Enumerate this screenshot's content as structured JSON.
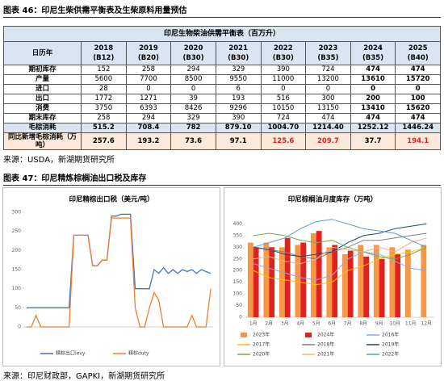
{
  "fig46": {
    "caption": "图表 46：印尼生柴供需平衡表及生柴原料用量预估",
    "source": "来源：USDA，新湖期货研究所"
  },
  "table": {
    "title": "印尼生物柴油供需平衡表（百万升）",
    "header_label": "日历年",
    "years": [
      "2018",
      "2019",
      "2020",
      "2021",
      "2022",
      "2023",
      "2024",
      "2025"
    ],
    "blends": [
      "(B12)",
      "(B20)",
      "(B30)",
      "(B30)",
      "(B30)",
      "(B35)",
      "(B35)",
      "(B40)"
    ],
    "rows": [
      {
        "label": "期初库存",
        "cells": [
          "152",
          "258",
          "294",
          "329",
          "390",
          "724",
          "474",
          "474"
        ]
      },
      {
        "label": "产量",
        "cells": [
          "5600",
          "7700",
          "8500",
          "9550",
          "11000",
          "13200",
          "13610",
          "15720"
        ]
      },
      {
        "label": "进口",
        "cells": [
          "28",
          "0",
          "0",
          "6",
          "0",
          "0",
          "0",
          "0"
        ]
      },
      {
        "label": "出口",
        "cells": [
          "1772",
          "1271",
          "39",
          "193",
          "516",
          "300",
          "200",
          "100"
        ]
      },
      {
        "label": "消费",
        "cells": [
          "3750",
          "6393",
          "8426",
          "9296",
          "10150",
          "13150",
          "13410",
          "15620"
        ]
      },
      {
        "label": "期末库存",
        "cells": [
          "258",
          "294",
          "329",
          "390",
          "724",
          "474",
          "474",
          "474"
        ]
      },
      {
        "label": "毛棕消耗",
        "cells": [
          "515.2",
          "708.4",
          "782",
          "879.10",
          "1004.70",
          "1214.40",
          "1252.12",
          "1446.24"
        ]
      },
      {
        "label": "同比新增毛棕消耗（万吨）",
        "cells": [
          "257.6",
          "193.2",
          "73.6",
          "97.1",
          "125.6",
          "209.7",
          "37.7",
          "194.1"
        ]
      }
    ]
  },
  "fig47": {
    "caption": "图表 47：印尼精炼棕榈油出口税及库存",
    "source": "来源：印尼财政部，GAPKI，新湖期货研究所"
  },
  "chart_data": [
    {
      "type": "line",
      "title": "印尼精棕出口税（美元/吨）",
      "categories": [
        null,
        null,
        null,
        null,
        null,
        null,
        null,
        null,
        null,
        null,
        null,
        null,
        null,
        null,
        null,
        null,
        null,
        null,
        null,
        null,
        null,
        null,
        null,
        null,
        null,
        null,
        null,
        null,
        null,
        null,
        null,
        null,
        null,
        null,
        null,
        null,
        null,
        null,
        null,
        null
      ],
      "series": [
        {
          "name": "精棕出口levy",
          "color": "#4472c4",
          "values": [
            50,
            50,
            50,
            50,
            50,
            50,
            50,
            50,
            50,
            50,
            240,
            240,
            240,
            240,
            160,
            160,
            175,
            175,
            290,
            290,
            295,
            295,
            295,
            100,
            100,
            100,
            100,
            150,
            140,
            155,
            140,
            150,
            140,
            150,
            145,
            150,
            140,
            150,
            145,
            140
          ]
        },
        {
          "name": "精棕duty",
          "color": "#ed7d31",
          "values": [
            0,
            0,
            30,
            0,
            0,
            0,
            0,
            0,
            0,
            0,
            240,
            240,
            240,
            240,
            160,
            160,
            175,
            175,
            285,
            285,
            285,
            285,
            285,
            50,
            0,
            0,
            50,
            90,
            70,
            0,
            0,
            0,
            0,
            0,
            0,
            30,
            0,
            0,
            0,
            100
          ]
        }
      ],
      "ylim": [
        0,
        300
      ],
      "yticks": [
        0,
        50,
        100,
        150,
        200,
        250,
        300
      ],
      "grid": false
    },
    {
      "type": "bar",
      "title": "印尼棕榈油月度库存（万吨）",
      "categories": [
        "1月",
        "2月",
        "3月",
        "4月",
        "5月",
        "6月",
        "7月",
        "8月",
        "9月",
        "10月",
        "11月",
        "12月"
      ],
      "series": [
        {
          "name": "2023年",
          "type": "bar",
          "color": "#f79646",
          "values": [
            320,
            320,
            300,
            310,
            360,
            300,
            270,
            310,
            310,
            300,
            290,
            310
          ]
        },
        {
          "name": "2024年",
          "type": "bar",
          "color": "#e0211f",
          "values": [
            300,
            300,
            340,
            320,
            370,
            310,
            285,
            260,
            250,
            270,
            null,
            null
          ]
        },
        {
          "name": "2016年",
          "type": "line",
          "color": "#8faadc",
          "values": [
            230,
            210,
            190,
            170,
            160,
            180,
            250,
            280,
            270,
            240,
            210,
            200
          ]
        },
        {
          "name": "2017年",
          "type": "line",
          "color": "#ffc000",
          "values": [
            200,
            170,
            160,
            150,
            140,
            150,
            200,
            220,
            250,
            270,
            280,
            300
          ]
        },
        {
          "name": "2018年",
          "type": "line",
          "color": "#7f7f7f",
          "values": [
            300,
            290,
            280,
            260,
            250,
            280,
            300,
            330,
            330,
            340,
            350,
            360
          ]
        },
        {
          "name": "2019年",
          "type": "line",
          "color": "#264478",
          "values": [
            300,
            290,
            270,
            260,
            270,
            280,
            320,
            350,
            360,
            380,
            390,
            400
          ]
        },
        {
          "name": "2020年",
          "type": "line",
          "color": "#70ad47",
          "values": [
            350,
            360,
            350,
            330,
            320,
            330,
            300,
            280,
            260,
            250,
            270,
            300
          ]
        },
        {
          "name": "2021年",
          "type": "line",
          "color": "#f4b183",
          "values": [
            250,
            260,
            240,
            230,
            250,
            300,
            290,
            280,
            300,
            280,
            320,
            340
          ]
        },
        {
          "name": "2022年",
          "type": "line",
          "color": "#5b9bd5",
          "values": [
            300,
            320,
            340,
            380,
            410,
            420,
            400,
            380,
            370,
            360,
            330,
            300
          ]
        }
      ],
      "ylim": [
        0,
        450
      ],
      "yticks": [
        0,
        50,
        100,
        150,
        200,
        250,
        300,
        350,
        400
      ],
      "grid": false
    }
  ]
}
